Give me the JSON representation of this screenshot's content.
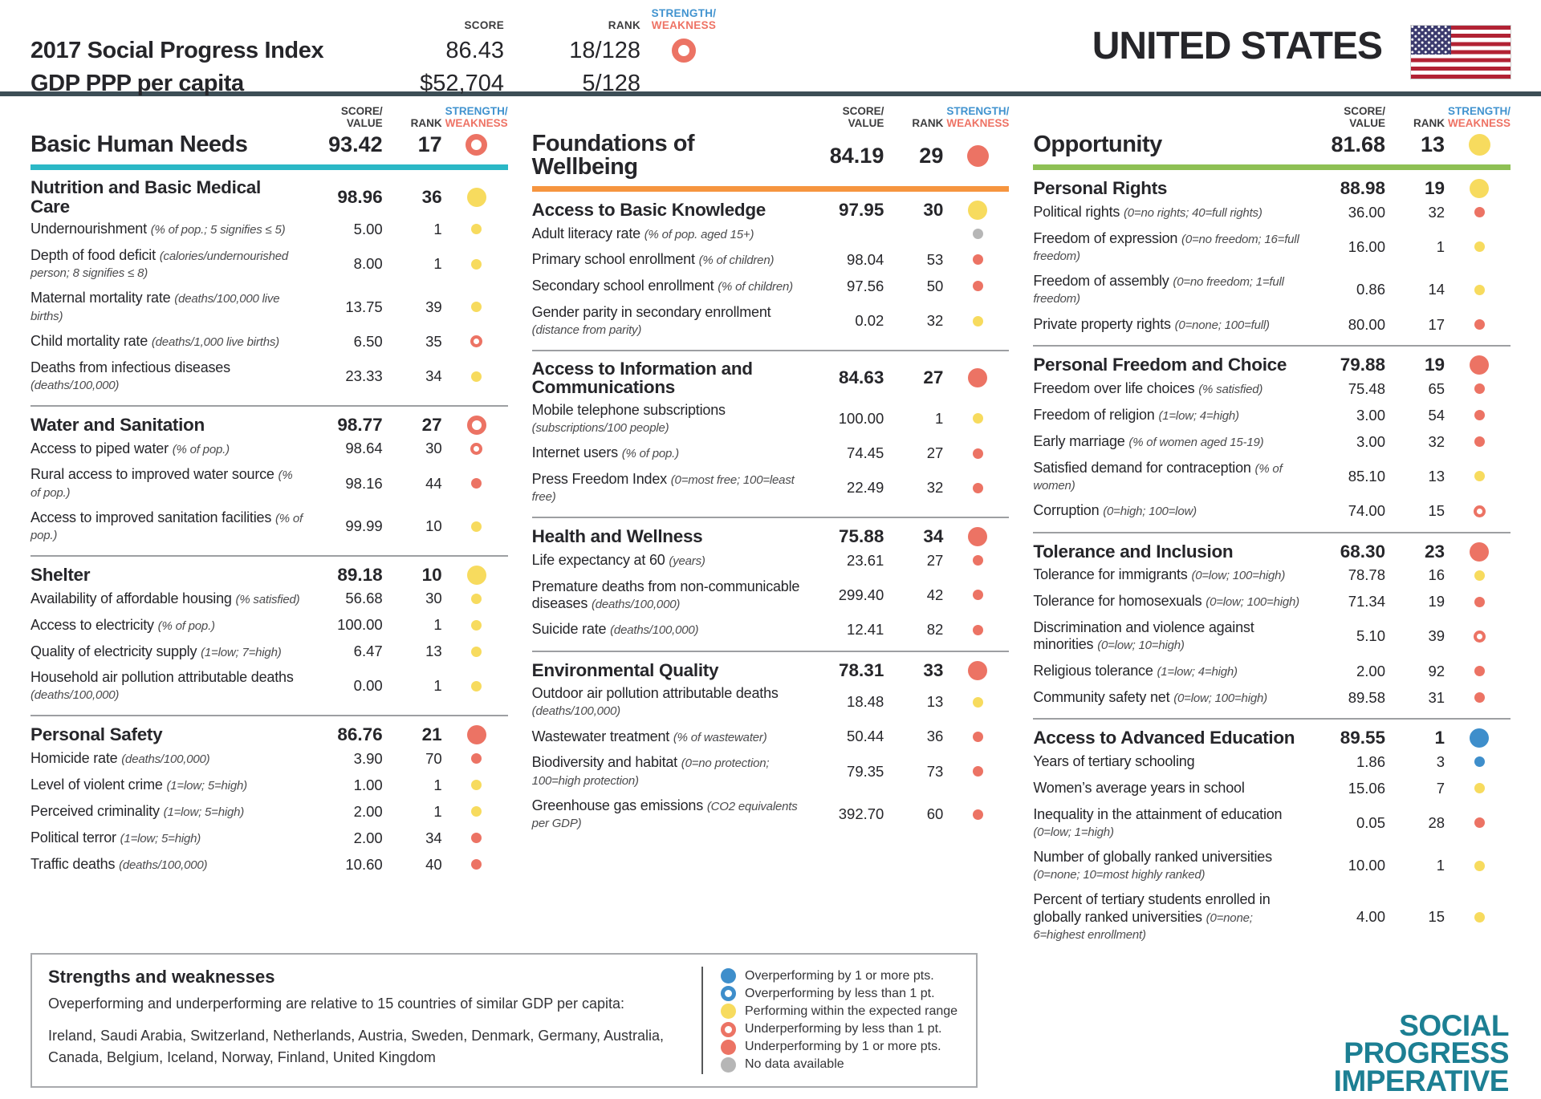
{
  "colors": {
    "text": "#26262a",
    "note": "#4c4c4e",
    "red": "#ec7364",
    "yellow": "#f7db5e",
    "blue": "#3e8ecb",
    "gray": "#b6b6b6",
    "teal_accent": "#2bb8c6",
    "orange_accent": "#f6953f",
    "green_accent": "#8ec054",
    "dark_rule": "#3d4e56",
    "strength_blue": "#4193cf",
    "weakness_red": "#ee7365",
    "logo_teal": "#1c7f93",
    "legend_border": "#a8aaad",
    "divider": "#9d9fa2",
    "flag_red": "#b22234",
    "flag_blue": "#3c3b6e"
  },
  "table_headers": {
    "score": "SCORE",
    "score_value_1": "SCORE/",
    "score_value_2": "VALUE",
    "rank": "RANK",
    "strength": "STRENGTH/",
    "weakness": "WEAKNESS"
  },
  "header": {
    "country": "UNITED STATES",
    "flag_icon": "us-flag",
    "rows": [
      {
        "label": "2017 Social Progress Index",
        "score": "86.43",
        "rank": "18/128",
        "dot": "red-open"
      },
      {
        "label": "GDP PPP per capita",
        "score": "$52,704",
        "rank": "5/128",
        "dot": null
      }
    ]
  },
  "columns": [
    {
      "title": "Basic Human Needs",
      "score": "93.42",
      "rank": "17",
      "dot": "red-open",
      "accent": "teal",
      "sections": [
        {
          "name": "Nutrition and Basic Medical Care",
          "score": "98.96",
          "rank": "36",
          "dot": "yellow",
          "indicators": [
            {
              "name": "Undernourishment",
              "note": "(% of pop.; 5 signifies ≤ 5)",
              "value": "5.00",
              "rank": "1",
              "dot": "yellow"
            },
            {
              "name": "Depth of food deficit",
              "note": "(calories/undernourished person; 8 signifies ≤ 8)",
              "value": "8.00",
              "rank": "1",
              "dot": "yellow"
            },
            {
              "name": "Maternal mortality rate",
              "note": "(deaths/100,000 live births)",
              "value": "13.75",
              "rank": "39",
              "dot": "yellow"
            },
            {
              "name": "Child mortality rate",
              "note": "(deaths/1,000 live births)",
              "value": "6.50",
              "rank": "35",
              "dot": "red-open"
            },
            {
              "name": "Deaths from infectious diseases",
              "note": "(deaths/100,000)",
              "value": "23.33",
              "rank": "34",
              "dot": "yellow"
            }
          ]
        },
        {
          "name": "Water and Sanitation",
          "score": "98.77",
          "rank": "27",
          "dot": "red-open",
          "indicators": [
            {
              "name": "Access to piped water",
              "note": "(% of pop.)",
              "value": "98.64",
              "rank": "30",
              "dot": "red-open"
            },
            {
              "name": "Rural access to improved water source",
              "note": "(% of pop.)",
              "value": "98.16",
              "rank": "44",
              "dot": "red"
            },
            {
              "name": "Access to improved sanitation facilities",
              "note": "(% of pop.)",
              "value": "99.99",
              "rank": "10",
              "dot": "yellow"
            }
          ]
        },
        {
          "name": "Shelter",
          "score": "89.18",
          "rank": "10",
          "dot": "yellow",
          "indicators": [
            {
              "name": "Availability of affordable housing",
              "note": "(% satisfied)",
              "value": "56.68",
              "rank": "30",
              "dot": "yellow"
            },
            {
              "name": "Access to electricity",
              "note": "(% of pop.)",
              "value": "100.00",
              "rank": "1",
              "dot": "yellow"
            },
            {
              "name": "Quality of electricity supply",
              "note": "(1=low; 7=high)",
              "value": "6.47",
              "rank": "13",
              "dot": "yellow"
            },
            {
              "name": "Household air pollution attributable deaths",
              "note": "(deaths/100,000)",
              "value": "0.00",
              "rank": "1",
              "dot": "yellow"
            }
          ]
        },
        {
          "name": "Personal Safety",
          "score": "86.76",
          "rank": "21",
          "dot": "red",
          "indicators": [
            {
              "name": "Homicide rate",
              "note": "(deaths/100,000)",
              "value": "3.90",
              "rank": "70",
              "dot": "red"
            },
            {
              "name": "Level of violent crime",
              "note": "(1=low; 5=high)",
              "value": "1.00",
              "rank": "1",
              "dot": "yellow"
            },
            {
              "name": "Perceived criminality",
              "note": "(1=low; 5=high)",
              "value": "2.00",
              "rank": "1",
              "dot": "yellow"
            },
            {
              "name": "Political terror",
              "note": "(1=low; 5=high)",
              "value": "2.00",
              "rank": "34",
              "dot": "red"
            },
            {
              "name": "Traffic deaths",
              "note": "(deaths/100,000)",
              "value": "10.60",
              "rank": "40",
              "dot": "red"
            }
          ]
        }
      ]
    },
    {
      "title": "Foundations of Wellbeing",
      "score": "84.19",
      "rank": "29",
      "dot": "red",
      "accent": "orange",
      "sections": [
        {
          "name": "Access to Basic Knowledge",
          "score": "97.95",
          "rank": "30",
          "dot": "yellow",
          "indicators": [
            {
              "name": "Adult literacy rate",
              "note": "(% of pop. aged 15+)",
              "value": "",
              "rank": "",
              "dot": "gray"
            },
            {
              "name": "Primary school enrollment",
              "note": "(% of children)",
              "value": "98.04",
              "rank": "53",
              "dot": "red"
            },
            {
              "name": "Secondary school enrollment",
              "note": "(% of children)",
              "value": "97.56",
              "rank": "50",
              "dot": "red"
            },
            {
              "name": "Gender parity in secondary enrollment",
              "note": "(distance from parity)",
              "value": "0.02",
              "rank": "32",
              "dot": "yellow"
            }
          ]
        },
        {
          "name": "Access to Information and Communications",
          "score": "84.63",
          "rank": "27",
          "dot": "red",
          "indicators": [
            {
              "name": "Mobile telephone subscriptions",
              "note": "(subscriptions/100 people)",
              "value": "100.00",
              "rank": "1",
              "dot": "yellow"
            },
            {
              "name": "Internet users",
              "note": "(% of pop.)",
              "value": "74.45",
              "rank": "27",
              "dot": "red"
            },
            {
              "name": "Press Freedom Index",
              "note": "(0=most free; 100=least free)",
              "value": "22.49",
              "rank": "32",
              "dot": "red"
            }
          ]
        },
        {
          "name": "Health and Wellness",
          "score": "75.88",
          "rank": "34",
          "dot": "red",
          "indicators": [
            {
              "name": "Life expectancy at 60",
              "note": "(years)",
              "value": "23.61",
              "rank": "27",
              "dot": "red"
            },
            {
              "name": "Premature deaths from non-communicable diseases",
              "note": "(deaths/100,000)",
              "value": "299.40",
              "rank": "42",
              "dot": "red"
            },
            {
              "name": "Suicide rate",
              "note": "(deaths/100,000)",
              "value": "12.41",
              "rank": "82",
              "dot": "red"
            }
          ]
        },
        {
          "name": "Environmental Quality",
          "score": "78.31",
          "rank": "33",
          "dot": "red",
          "indicators": [
            {
              "name": "Outdoor air pollution attributable deaths",
              "note": "(deaths/100,000)",
              "value": "18.48",
              "rank": "13",
              "dot": "yellow"
            },
            {
              "name": "Wastewater treatment",
              "note": "(% of wastewater)",
              "value": "50.44",
              "rank": "36",
              "dot": "red"
            },
            {
              "name": "Biodiversity and habitat",
              "note": "(0=no protection; 100=high protection)",
              "value": "79.35",
              "rank": "73",
              "dot": "red"
            },
            {
              "name": "Greenhouse gas emissions",
              "note": "(CO2 equivalents per GDP)",
              "value": "392.70",
              "rank": "60",
              "dot": "red"
            }
          ]
        }
      ]
    },
    {
      "title": "Opportunity",
      "score": "81.68",
      "rank": "13",
      "dot": "yellow",
      "accent": "green",
      "sections": [
        {
          "name": "Personal Rights",
          "score": "88.98",
          "rank": "19",
          "dot": "yellow",
          "indicators": [
            {
              "name": "Political rights",
              "note": "(0=no rights; 40=full rights)",
              "value": "36.00",
              "rank": "32",
              "dot": "red"
            },
            {
              "name": "Freedom of expression",
              "note": "(0=no freedom; 16=full freedom)",
              "value": "16.00",
              "rank": "1",
              "dot": "yellow"
            },
            {
              "name": "Freedom of assembly",
              "note": "(0=no freedom; 1=full freedom)",
              "value": "0.86",
              "rank": "14",
              "dot": "yellow"
            },
            {
              "name": "Private property rights",
              "note": "(0=none; 100=full)",
              "value": "80.00",
              "rank": "17",
              "dot": "red"
            }
          ]
        },
        {
          "name": "Personal Freedom and Choice",
          "score": "79.88",
          "rank": "19",
          "dot": "red",
          "indicators": [
            {
              "name": "Freedom over life choices",
              "note": "(% satisfied)",
              "value": "75.48",
              "rank": "65",
              "dot": "red"
            },
            {
              "name": "Freedom of religion",
              "note": "(1=low; 4=high)",
              "value": "3.00",
              "rank": "54",
              "dot": "red"
            },
            {
              "name": "Early marriage",
              "note": "(% of women aged 15-19)",
              "value": "3.00",
              "rank": "32",
              "dot": "red"
            },
            {
              "name": "Satisfied demand for contraception",
              "note": "(% of women)",
              "value": "85.10",
              "rank": "13",
              "dot": "yellow"
            },
            {
              "name": "Corruption",
              "note": "(0=high; 100=low)",
              "value": "74.00",
              "rank": "15",
              "dot": "red-open"
            }
          ]
        },
        {
          "name": "Tolerance and Inclusion",
          "score": "68.30",
          "rank": "23",
          "dot": "red",
          "indicators": [
            {
              "name": "Tolerance for immigrants",
              "note": "(0=low; 100=high)",
              "value": "78.78",
              "rank": "16",
              "dot": "yellow"
            },
            {
              "name": "Tolerance for homosexuals",
              "note": "(0=low; 100=high)",
              "value": "71.34",
              "rank": "19",
              "dot": "red"
            },
            {
              "name": "Discrimination and violence against minorities",
              "note": "(0=low; 10=high)",
              "value": "5.10",
              "rank": "39",
              "dot": "red-open"
            },
            {
              "name": "Religious tolerance",
              "note": "(1=low; 4=high)",
              "value": "2.00",
              "rank": "92",
              "dot": "red"
            },
            {
              "name": "Community safety net",
              "note": "(0=low; 100=high)",
              "value": "89.58",
              "rank": "31",
              "dot": "red"
            }
          ]
        },
        {
          "name": "Access to Advanced Education",
          "score": "89.55",
          "rank": "1",
          "dot": "blue",
          "indicators": [
            {
              "name": "Years of tertiary schooling",
              "note": "",
              "value": "1.86",
              "rank": "3",
              "dot": "blue"
            },
            {
              "name": "Women’s average years in school",
              "note": "",
              "value": "15.06",
              "rank": "7",
              "dot": "yellow"
            },
            {
              "name": "Inequality in the attainment of education",
              "note": "(0=low; 1=high)",
              "value": "0.05",
              "rank": "28",
              "dot": "red"
            },
            {
              "name": "Number of globally ranked universities",
              "note": "(0=none; 10=most highly ranked)",
              "value": "10.00",
              "rank": "1",
              "dot": "yellow"
            },
            {
              "name": "Percent of tertiary students enrolled in globally ranked universities",
              "note": "(0=none; 6=highest enrollment)",
              "value": "4.00",
              "rank": "15",
              "dot": "yellow"
            }
          ]
        }
      ]
    }
  ],
  "legend": {
    "title": "Strengths and weaknesses",
    "description": "Oveperforming and underperforming are relative to 15 countries of similar GDP per capita:",
    "countries": "Ireland, Saudi Arabia, Switzerland, Netherlands, Austria, Sweden, Denmark, Germany, Australia, Canada, Belgium, Iceland, Norway, Finland, United Kingdom",
    "items": [
      {
        "dot": "blue",
        "label": "Overperforming by 1 or more pts."
      },
      {
        "dot": "blue-open",
        "label": "Overperforming by less than 1 pt."
      },
      {
        "dot": "yellow",
        "label": "Performing within the expected range"
      },
      {
        "dot": "red-open",
        "label": "Underperforming by less than 1 pt."
      },
      {
        "dot": "red",
        "label": "Underperforming by 1 or more pts."
      },
      {
        "dot": "gray",
        "label": "No data available"
      }
    ]
  },
  "logo": {
    "line1": "SOCIAL",
    "line2": "PROGRESS",
    "line3": "IMPERATIVE"
  }
}
